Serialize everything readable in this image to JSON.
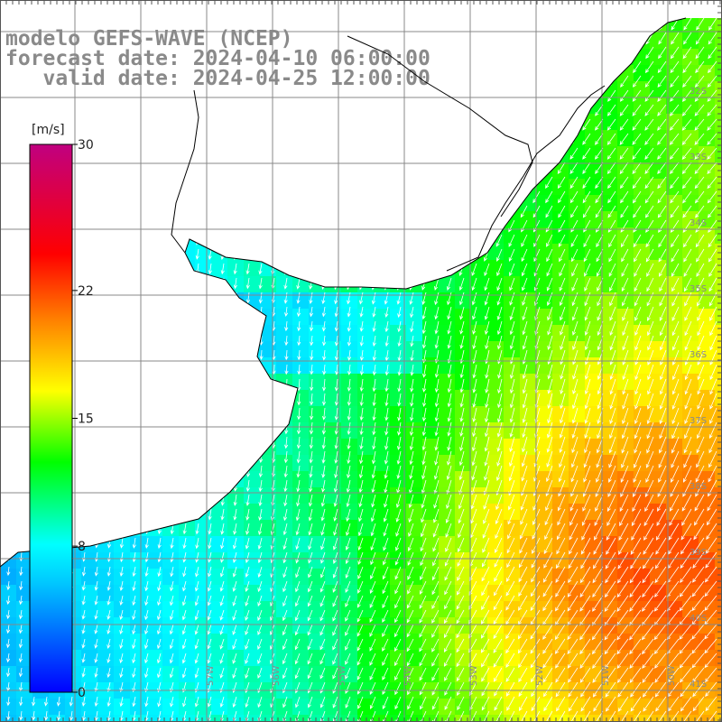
{
  "title": {
    "model": "modelo GEFS-WAVE (NCEP)",
    "forecast": "forecast date: 2024-04-10 06:00:00",
    "valid": "   valid date: 2024-04-25 12:00:00"
  },
  "colorbar": {
    "unit": "[m/s]",
    "ticks": [
      {
        "value": 30,
        "label": "30"
      },
      {
        "value": 22,
        "label": "22"
      },
      {
        "value": 15,
        "label": "15"
      },
      {
        "value": 8,
        "label": "8"
      },
      {
        "value": 0,
        "label": "0"
      }
    ],
    "min": 0,
    "max": 30,
    "stops": [
      "#0000ff",
      "#00c8ff",
      "#00ffff",
      "#00ff00",
      "#ffff00",
      "#ff8000",
      "#ff0000",
      "#c00080"
    ]
  },
  "map": {
    "lat_labels": [
      "32S",
      "33S",
      "34S",
      "35S",
      "36S",
      "37S",
      "38S",
      "39S",
      "40S",
      "41S"
    ],
    "lon_labels": [
      "57W",
      "56W",
      "55W",
      "54W",
      "53W",
      "52W",
      "51W",
      "50W"
    ],
    "arrow_color": "#ffffff",
    "coast_color": "#000000",
    "grid_color": "#888888",
    "land_color": "#ffffff"
  }
}
